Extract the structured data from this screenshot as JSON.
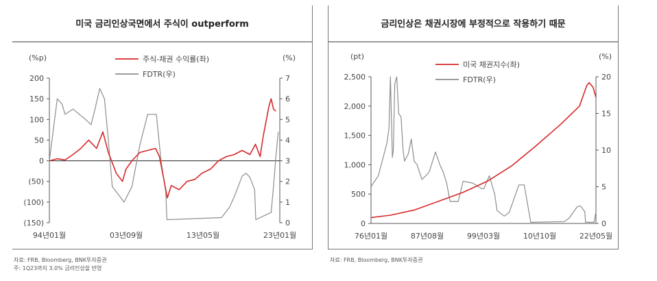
{
  "chart_data": [
    {
      "type": "line",
      "title": "미국 금리인상국면에서 주식이 outperform",
      "left_axis_unit": "(%p)",
      "right_axis_unit": "(%)",
      "xticks": [
        "94년01월",
        "03년09월",
        "13년05월",
        "23년01월"
      ],
      "x_range": [
        1994.0,
        2023.3
      ],
      "ylim_left": [
        -150,
        200
      ],
      "ylim_right": [
        0,
        7
      ],
      "yticks_left": [
        "200",
        "150",
        "100",
        "50",
        "0",
        "(50)",
        "(100)",
        "(150)"
      ],
      "yticks_right": [
        "7",
        "6",
        "5",
        "4",
        "3",
        "2",
        "1",
        "0"
      ],
      "legend_position": "top-center",
      "series": [
        {
          "name": "주식-채권 수익률(좌)",
          "axis": "left",
          "color": "#d62728",
          "x": [
            1994.0,
            1995.0,
            1996.0,
            1997.0,
            1998.0,
            1999.0,
            2000.0,
            2000.8,
            2001.5,
            2002.5,
            2003.3,
            2003.75,
            2004.5,
            2005.5,
            2006.5,
            2007.5,
            2008.0,
            2008.5,
            2009.0,
            2009.5,
            2010.5,
            2011.5,
            2012.5,
            2013.4,
            2014.5,
            2015.5,
            2016.5,
            2017.5,
            2018.5,
            2019.5,
            2020.2,
            2020.8,
            2021.2,
            2021.6,
            2021.9,
            2022.2,
            2022.5,
            2022.8
          ],
          "y": [
            0,
            5,
            2,
            15,
            30,
            50,
            30,
            70,
            20,
            -30,
            -50,
            -20,
            0,
            20,
            25,
            30,
            10,
            -40,
            -90,
            -60,
            -70,
            -50,
            -45,
            -30,
            -20,
            0,
            10,
            15,
            25,
            15,
            40,
            10,
            60,
            100,
            130,
            150,
            125,
            120
          ]
        },
        {
          "name": "FDTR(우)",
          "axis": "right",
          "color": "#8c8c8c",
          "x": [
            1994.0,
            1995.0,
            1995.6,
            1996.0,
            1997.0,
            1998.6,
            1999.3,
            1999.8,
            2000.4,
            2001.0,
            2001.5,
            2002.0,
            2003.0,
            2003.5,
            2004.5,
            2005.5,
            2006.5,
            2007.6,
            2008.2,
            2008.8,
            2008.95,
            2015.9,
            2016.9,
            2017.5,
            2018.5,
            2019.0,
            2019.5,
            2020.1,
            2020.25,
            2022.2,
            2022.5,
            2022.8,
            2023.1
          ],
          "y": [
            3,
            6,
            5.75,
            5.25,
            5.5,
            5.0,
            4.75,
            5.5,
            6.5,
            6.0,
            4.0,
            1.75,
            1.25,
            1.0,
            1.75,
            3.75,
            5.25,
            5.25,
            3.0,
            1.5,
            0.15,
            0.25,
            0.75,
            1.25,
            2.25,
            2.4,
            2.2,
            1.6,
            0.15,
            0.5,
            1.75,
            3.2,
            4.4
          ]
        }
      ]
    },
    {
      "type": "line",
      "title": "금리인상은 채권시장에 부정적으로 작용하기 때문",
      "left_axis_unit": "(pt)",
      "right_axis_unit": "(%)",
      "xticks": [
        "76년01월",
        "87년08월",
        "99년03월",
        "10년10월",
        "22년05월"
      ],
      "x_range": [
        1976.0,
        2022.4
      ],
      "ylim_left": [
        0,
        2500
      ],
      "ylim_right": [
        0,
        20
      ],
      "yticks_left": [
        "2,500",
        "2,000",
        "1,500",
        "1,000",
        "500",
        "0"
      ],
      "yticks_right": [
        "20",
        "15",
        "10",
        "5",
        "0"
      ],
      "legend_position": "top-center",
      "series": [
        {
          "name": "미국 채권지수(좌)",
          "axis": "left",
          "color": "#d62728",
          "x": [
            1976.0,
            1980.0,
            1985.0,
            1990.0,
            1995.0,
            2000.0,
            2005.0,
            2010.0,
            2015.0,
            2019.0,
            2020.5,
            2021.0,
            2021.8,
            2022.4
          ],
          "y": [
            100,
            140,
            230,
            380,
            530,
            720,
            980,
            1320,
            1680,
            2000,
            2350,
            2400,
            2320,
            2150
          ]
        },
        {
          "name": "FDTR(우)",
          "axis": "right",
          "color": "#8c8c8c",
          "x": [
            1976.0,
            1976.5,
            1977.5,
            1978.5,
            1979.3,
            1979.7,
            1980.0,
            1980.4,
            1980.6,
            1980.9,
            1981.3,
            1981.7,
            1982.2,
            1982.6,
            1982.9,
            1983.7,
            1984.3,
            1984.9,
            1985.5,
            1986.5,
            1987.3,
            1988.0,
            1988.7,
            1989.3,
            1990.2,
            1990.9,
            1991.6,
            1992.3,
            1993.5,
            1994.0,
            1995.0,
            1997.0,
            1998.8,
            1999.3,
            2000.4,
            2001.5,
            2002.0,
            2003.5,
            2004.5,
            2006.5,
            2007.6,
            2008.2,
            2008.95,
            2015.9,
            2016.9,
            2018.5,
            2019.2,
            2020.1,
            2020.25,
            2022.0,
            2022.4
          ],
          "y": [
            5.0,
            5.5,
            6.5,
            9.0,
            11.0,
            13.0,
            20.0,
            9.0,
            10.0,
            19.0,
            20.0,
            15.0,
            14.5,
            10.0,
            8.5,
            9.5,
            11.5,
            8.5,
            8.0,
            6.0,
            6.5,
            7.0,
            8.5,
            9.75,
            8.0,
            7.0,
            5.5,
            3.0,
            3.0,
            3.0,
            5.75,
            5.5,
            4.75,
            4.75,
            6.5,
            4.0,
            1.75,
            1.0,
            1.5,
            5.25,
            5.25,
            3.0,
            0.15,
            0.25,
            0.75,
            2.25,
            2.4,
            1.6,
            0.15,
            0.15,
            1.6
          ]
        }
      ]
    }
  ],
  "sources": {
    "left_line1": "자료: FRB, Bloomberg, BNK투자증권",
    "left_line2": "주: 1Q23까지 3.0% 금리인상을 반영",
    "right_line1": "자료: FRB, Bloomberg, BNK투자증권"
  }
}
